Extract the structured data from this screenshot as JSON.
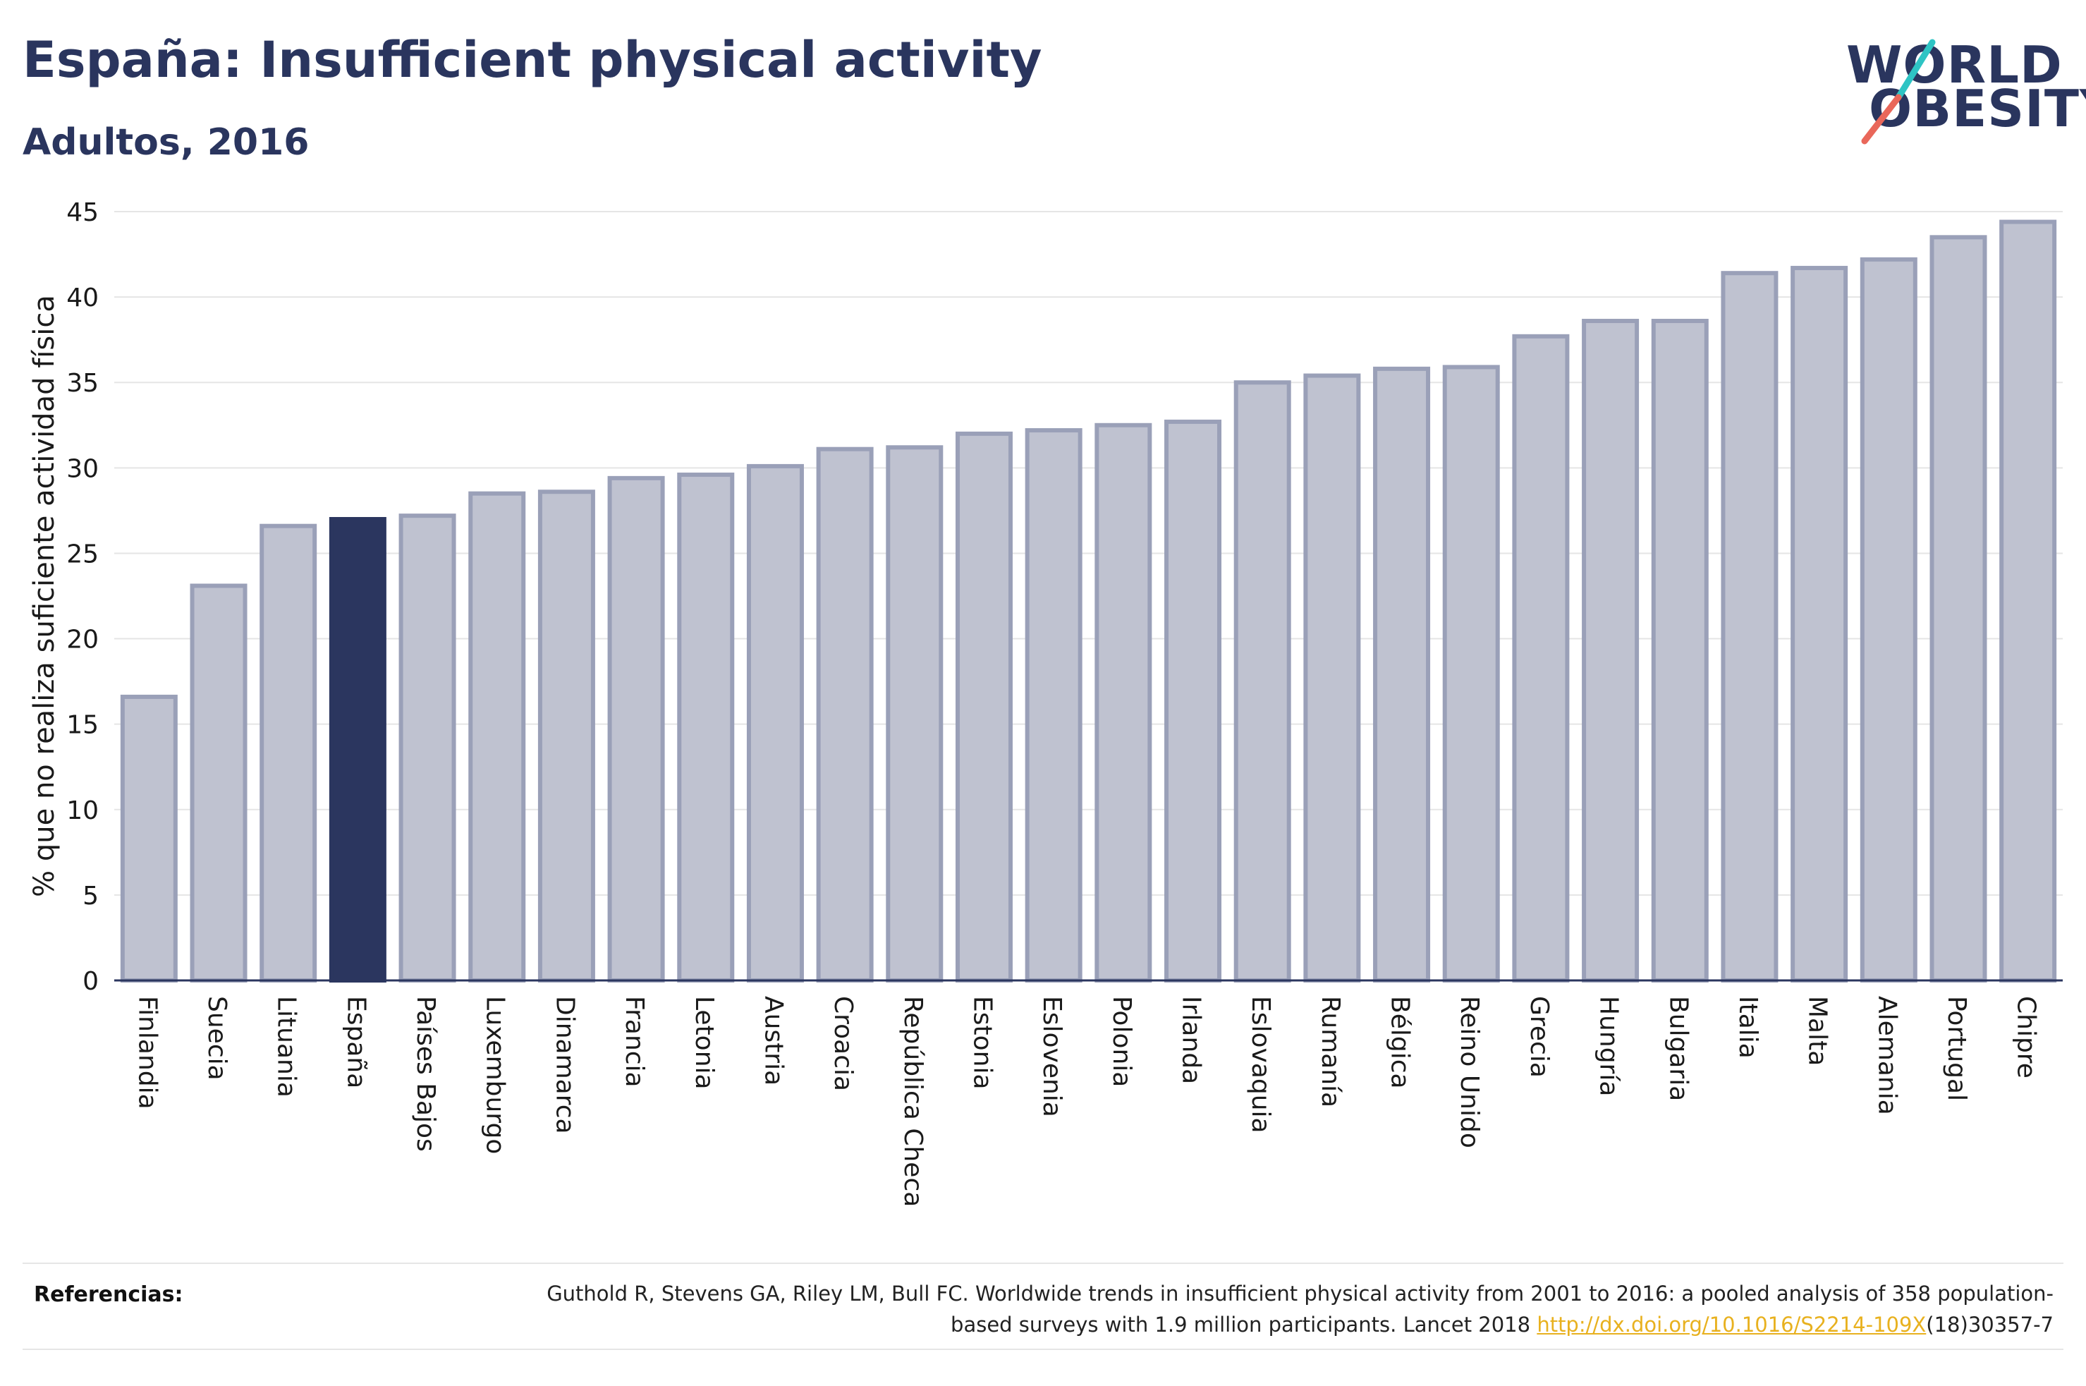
{
  "header": {
    "title": "España: Insufficient physical activity",
    "subtitle": "Adultos, 2016"
  },
  "logo": {
    "line1": "WORLD",
    "line2": "OBESITY",
    "accent_colors": [
      "#2ec4c4",
      "#e9675a"
    ]
  },
  "colors": {
    "bar": "#bfc2d0",
    "bar_border": "#9aa0b8",
    "highlight": "#2b365f",
    "grid": "#e5e5e5",
    "axis": "#2b365f",
    "link": "#e8b11f"
  },
  "chart_data": {
    "type": "bar",
    "title": "España: Insufficient physical activity",
    "subtitle": "Adultos, 2016",
    "xlabel": "",
    "ylabel": "% que no realiza suficiente actividad física",
    "ylim": [
      0,
      45
    ],
    "yticks": [
      0,
      5,
      10,
      15,
      20,
      25,
      30,
      35,
      40,
      45
    ],
    "grid": true,
    "highlight": "España",
    "categories": [
      "Finlandia",
      "Suecia",
      "Lituania",
      "España",
      "Países Bajos",
      "Luxemburgo",
      "Dinamarca",
      "Francia",
      "Letonia",
      "Austria",
      "Croacia",
      "República Checa",
      "Estonia",
      "Eslovenia",
      "Polonia",
      "Irlanda",
      "Eslovaquia",
      "Rumanía",
      "Bélgica",
      "Reino Unido",
      "Grecia",
      "Hungría",
      "Bulgaria",
      "Italia",
      "Malta",
      "Alemania",
      "Portugal",
      "Chipre"
    ],
    "values": [
      16.6,
      23.1,
      26.6,
      27.0,
      27.2,
      28.5,
      28.6,
      29.4,
      29.6,
      30.1,
      31.1,
      31.2,
      32.0,
      32.2,
      32.5,
      32.7,
      35.0,
      35.4,
      35.8,
      35.9,
      37.7,
      38.6,
      38.6,
      41.4,
      41.7,
      42.2,
      43.5,
      44.4
    ]
  },
  "references": {
    "label": "Referencias:",
    "text_before": "Guthold R, Stevens GA, Riley LM, Bull FC. Worldwide trends in insufficient physical activity from 2001 to 2016: a pooled analysis of 358 population-based surveys with 1.9 million participants. Lancet 2018 ",
    "link_text": "http://dx.doi.org/10.1016/S2214-109X",
    "text_after": "(18)30357-7"
  }
}
